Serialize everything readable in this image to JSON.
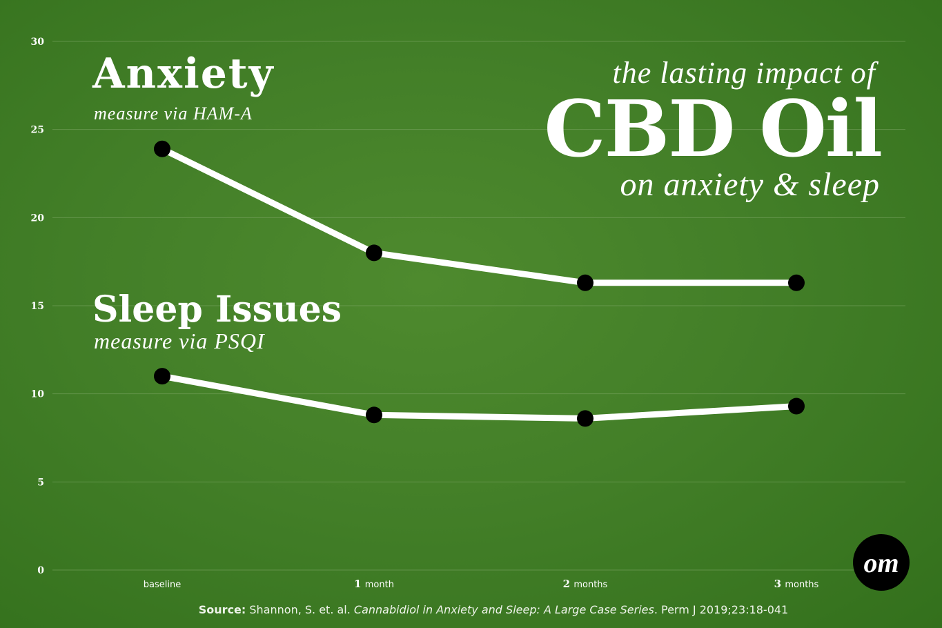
{
  "titles": {
    "anxiety": "Anxiety",
    "anxiety_sub": "measure via HAM-A",
    "sleep": "Sleep Issues",
    "sleep_sub": "measure via PSQI",
    "headline_top": "the lasting impact of",
    "headline_main": "CBD Oil",
    "headline_bottom": "on anxiety & sleep"
  },
  "source": {
    "label": "Source:",
    "authors": "Shannon, S. et. al.",
    "title": "Cannabidiol in Anxiety and Sleep: A Large Case Series",
    "citation": ". Perm J 2019;23:18-041"
  },
  "logo": "om",
  "colors": {
    "background": "#437f28",
    "line": "#ffffff",
    "marker": "#000000",
    "grid": "#7fa868",
    "tick_text": "#ffffff"
  },
  "chart_data": {
    "type": "line",
    "categories": [
      "baseline",
      "1 month",
      "2 months",
      "3 months"
    ],
    "category_labels": [
      {
        "num": "",
        "text": "baseline"
      },
      {
        "num": "1",
        "text": "month"
      },
      {
        "num": "2",
        "text": "months"
      },
      {
        "num": "3",
        "text": "months"
      }
    ],
    "series": [
      {
        "name": "Anxiety",
        "values": [
          23.9,
          18.0,
          16.3,
          16.3
        ]
      },
      {
        "name": "Sleep Issues",
        "values": [
          11.0,
          8.8,
          8.6,
          9.3
        ]
      }
    ],
    "ylim": [
      0,
      30
    ],
    "yticks": [
      0,
      5,
      10,
      15,
      20,
      25,
      30
    ],
    "grid": true
  }
}
